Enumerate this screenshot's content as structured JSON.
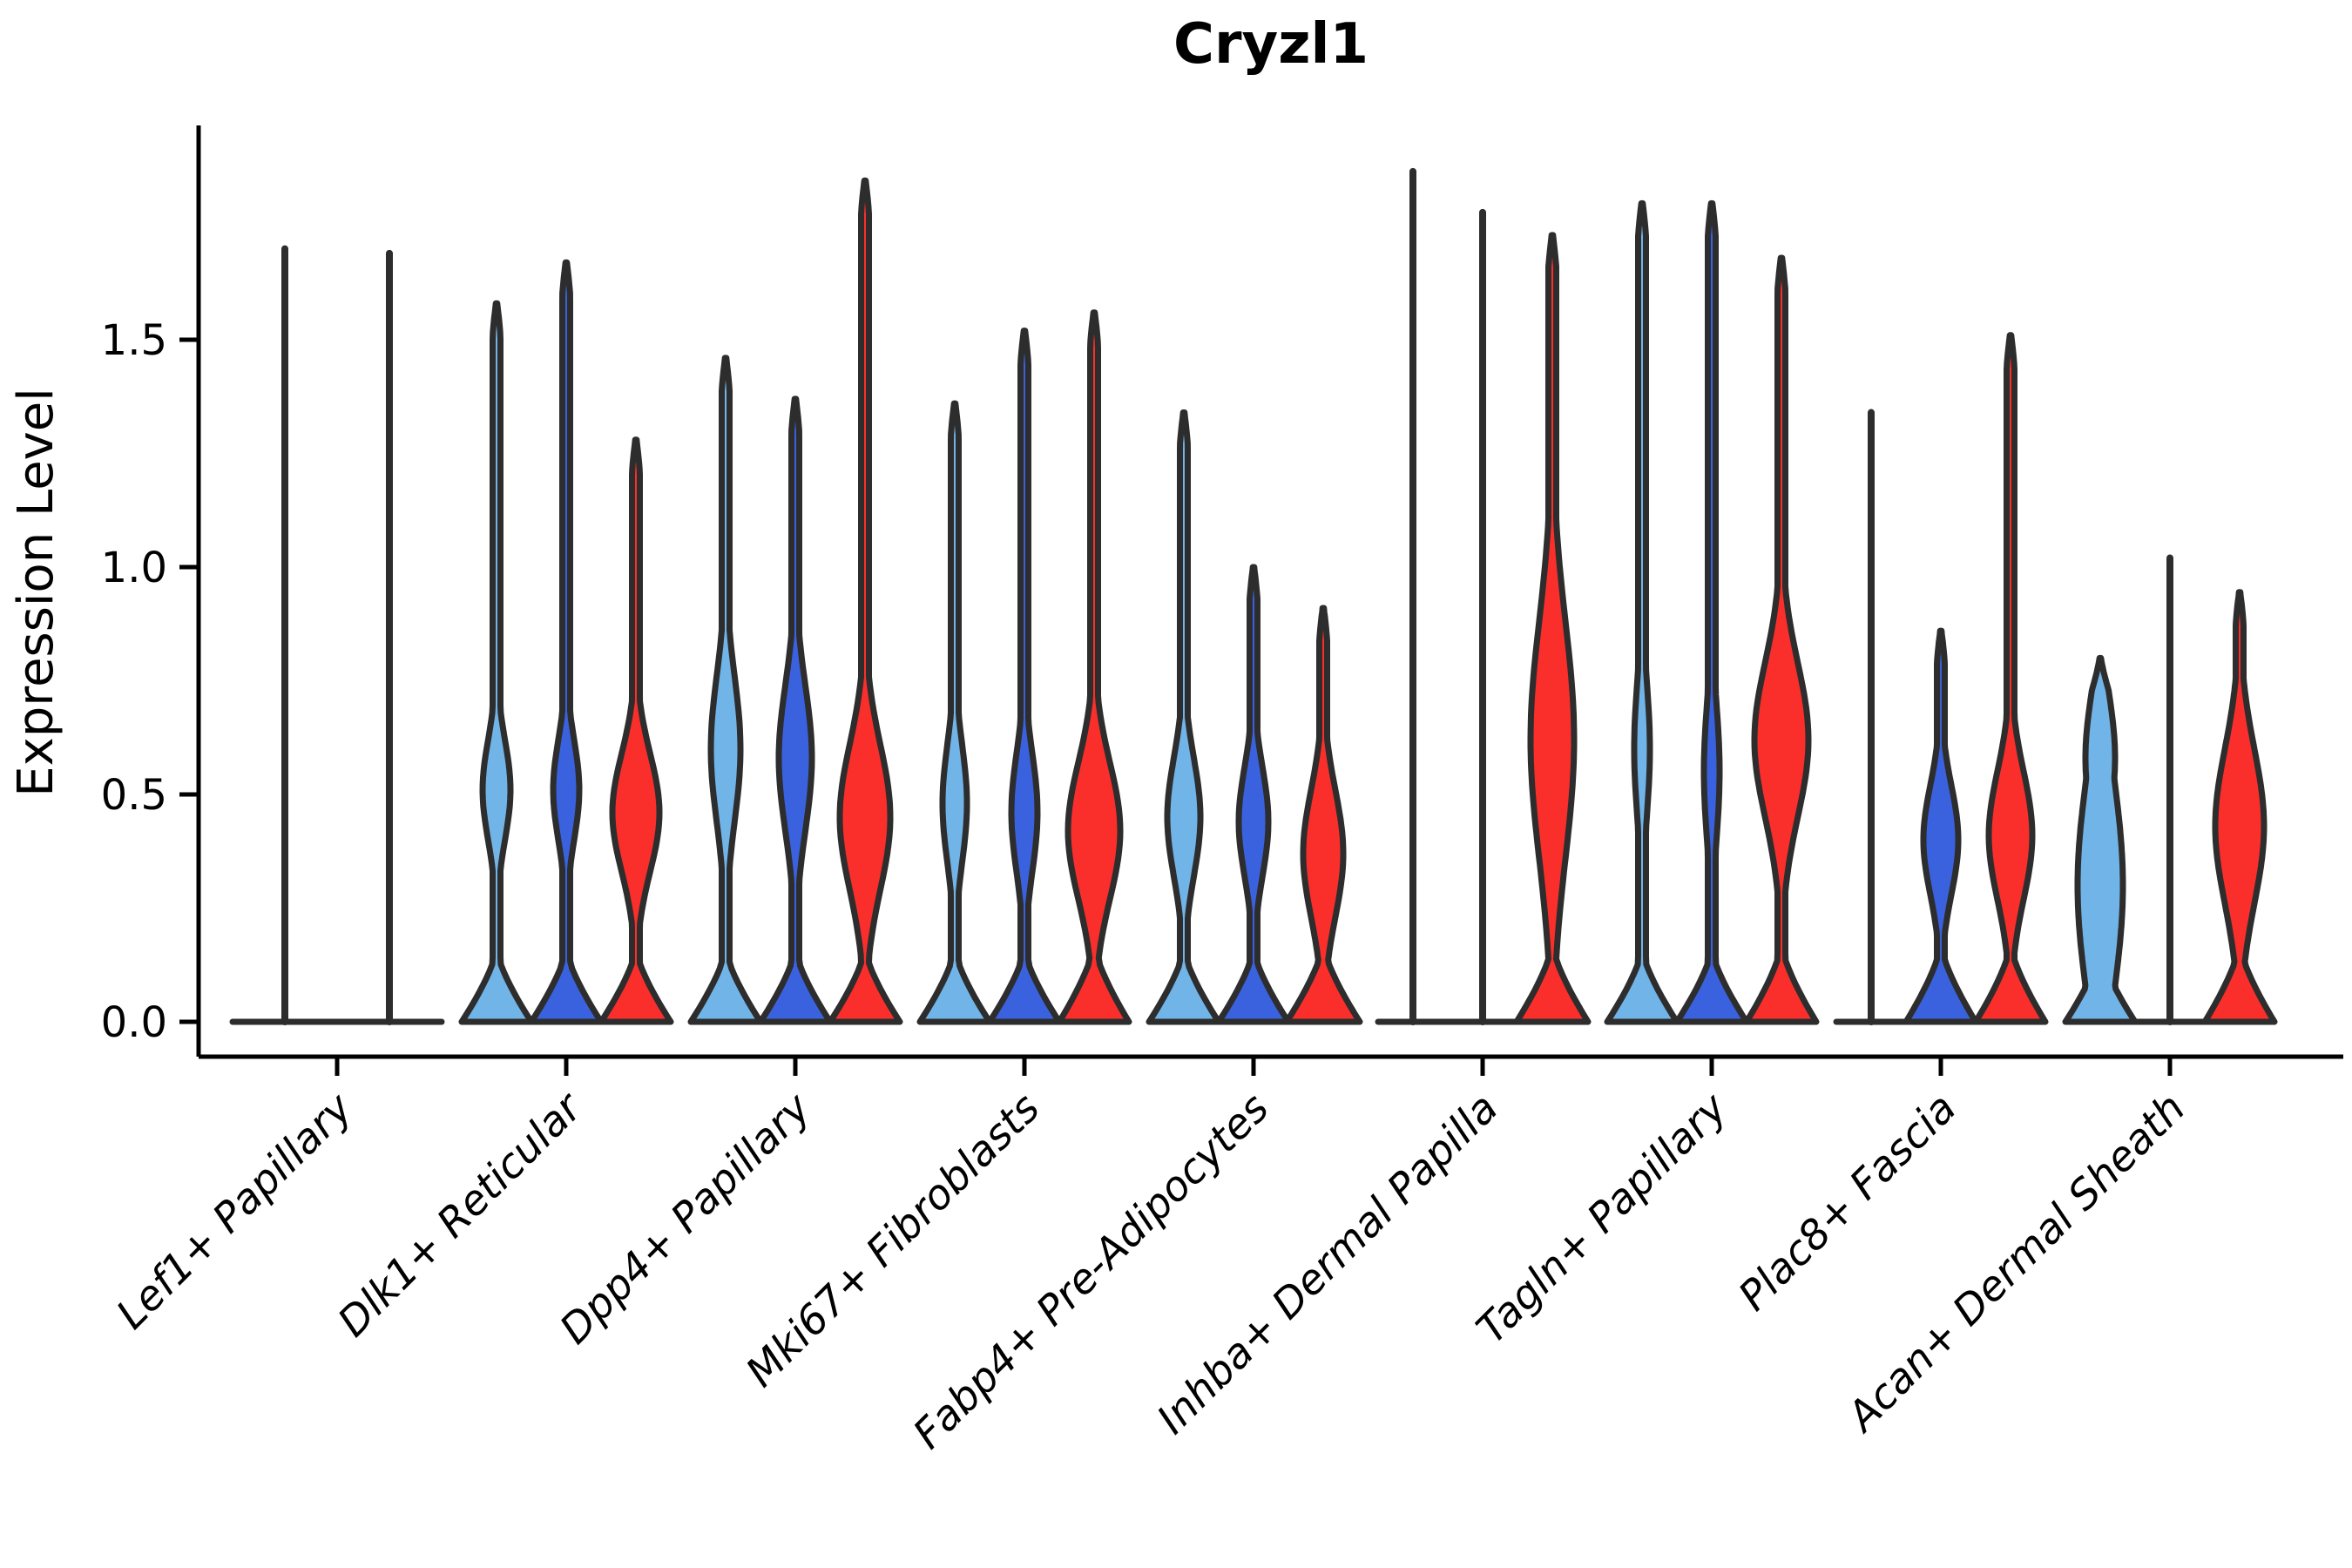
{
  "figure": {
    "title": "Cryzl1",
    "ylabel": "Expression Level"
  },
  "chart_data": {
    "type": "violin",
    "title": "Cryzl1",
    "xlabel": "",
    "ylabel": "Expression Level",
    "yticks": [
      "0.0",
      "0.5",
      "1.0",
      "1.5"
    ],
    "ytick_values": [
      0.0,
      0.5,
      1.0,
      1.5
    ],
    "ylim": [
      0,
      1.97
    ],
    "grid": false,
    "legend": "none",
    "series_colors": {
      "light_blue": "#71B4E8",
      "dark_blue": "#3B62DE",
      "red": "#FA2F2C"
    },
    "outline_color": "#2D2D2D",
    "axis_color": "#000000",
    "categories": [
      {
        "label": "Lef1+ Papillary",
        "violins": [
          {
            "color": null,
            "kind": "spike",
            "max": 1.7,
            "base": {
              "hw": 60
            }
          },
          {
            "color": null,
            "kind": "spike",
            "max": 1.69,
            "base": {
              "hw": 60
            }
          }
        ]
      },
      {
        "label": "Dlk1+ Reticular",
        "violins": [
          {
            "color": "light_blue",
            "kind": "violin",
            "max": 1.58,
            "bulges": [
              {
                "c": 0.51,
                "hw": 16,
                "sigma": 0.11
              }
            ],
            "base": {
              "hw": 40,
              "h": 0.16
            }
          },
          {
            "color": "dark_blue",
            "kind": "violin",
            "max": 1.67,
            "bulges": [
              {
                "c": 0.51,
                "hw": 15,
                "sigma": 0.11
              }
            ],
            "base": {
              "hw": 40,
              "h": 0.16
            }
          },
          {
            "color": "red",
            "kind": "violin",
            "max": 1.28,
            "bulges": [
              {
                "c": 0.46,
                "hw": 27,
                "sigma": 0.13
              }
            ],
            "base": {
              "hw": 40,
              "h": 0.16
            }
          }
        ]
      },
      {
        "label": "Dpp4+ Papillary",
        "violins": [
          {
            "color": "light_blue",
            "kind": "violin",
            "max": 1.46,
            "bulges": [
              {
                "c": 0.6,
                "hw": 17,
                "sigma": 0.16
              }
            ],
            "base": {
              "hw": 40,
              "h": 0.16
            }
          },
          {
            "color": "dark_blue",
            "kind": "violin",
            "max": 1.37,
            "bulges": [
              {
                "c": 0.58,
                "hw": 19,
                "sigma": 0.16
              }
            ],
            "base": {
              "hw": 40,
              "h": 0.16
            }
          },
          {
            "color": "red",
            "kind": "violin",
            "max": 1.85,
            "bulges": [
              {
                "c": 0.45,
                "hw": 29,
                "sigma": 0.16
              }
            ],
            "base": {
              "hw": 40,
              "h": 0.16
            }
          }
        ]
      },
      {
        "label": "Mki67+ Fibroblasts",
        "violins": [
          {
            "color": "light_blue",
            "kind": "violin",
            "max": 1.36,
            "bulges": [
              {
                "c": 0.48,
                "hw": 14,
                "sigma": 0.13
              }
            ],
            "base": {
              "hw": 40,
              "h": 0.16
            }
          },
          {
            "color": "dark_blue",
            "kind": "violin",
            "max": 1.52,
            "bulges": [
              {
                "c": 0.46,
                "hw": 15,
                "sigma": 0.13
              }
            ],
            "base": {
              "hw": 40,
              "h": 0.16
            }
          },
          {
            "color": "red",
            "kind": "violin",
            "max": 1.56,
            "bulges": [
              {
                "c": 0.42,
                "hw": 30,
                "sigma": 0.15
              }
            ],
            "base": {
              "hw": 40,
              "h": 0.17
            }
          }
        ]
      },
      {
        "label": "Fabp4+ Pre-Adipocytes",
        "violins": [
          {
            "color": "light_blue",
            "kind": "violin",
            "max": 1.34,
            "bulges": [
              {
                "c": 0.45,
                "hw": 19,
                "sigma": 0.13
              }
            ],
            "base": {
              "hw": 40,
              "h": 0.16
            }
          },
          {
            "color": "dark_blue",
            "kind": "violin",
            "max": 1.0,
            "bulges": [
              {
                "c": 0.44,
                "hw": 17,
                "sigma": 0.12
              }
            ],
            "base": {
              "hw": 40,
              "h": 0.16
            }
          },
          {
            "color": "red",
            "kind": "violin",
            "max": 0.91,
            "bulges": [
              {
                "c": 0.37,
                "hw": 23,
                "sigma": 0.14
              }
            ],
            "base": {
              "hw": 42,
              "h": 0.17
            }
          }
        ]
      },
      {
        "label": "Inhba+ Dermal Papilla",
        "violins": [
          {
            "color": "light_blue",
            "kind": "spike",
            "max": 1.87,
            "base": {
              "hw": 40
            }
          },
          {
            "color": "dark_blue",
            "kind": "spike",
            "max": 1.78,
            "base": {
              "hw": 40
            }
          },
          {
            "color": "red",
            "kind": "violin",
            "max": 1.73,
            "bulges": [
              {
                "c": 0.62,
                "hw": 25,
                "sigma": 0.26
              }
            ],
            "base": {
              "hw": 41,
              "h": 0.17
            }
          }
        ]
      },
      {
        "label": "Tagln+ Papillary",
        "violins": [
          {
            "color": "light_blue",
            "kind": "violin",
            "max": 1.8,
            "bulges": [
              {
                "c": 0.6,
                "hw": 9,
                "sigma": 0.15
              }
            ],
            "base": {
              "hw": 40,
              "h": 0.16
            }
          },
          {
            "color": "dark_blue",
            "kind": "violin",
            "max": 1.8,
            "bulges": [
              {
                "c": 0.55,
                "hw": 9,
                "sigma": 0.15
              }
            ],
            "base": {
              "hw": 40,
              "h": 0.16
            }
          },
          {
            "color": "red",
            "kind": "violin",
            "max": 1.68,
            "bulges": [
              {
                "c": 0.62,
                "hw": 31,
                "sigma": 0.17
              }
            ],
            "base": {
              "hw": 40,
              "h": 0.17
            }
          }
        ]
      },
      {
        "label": "Plac8+ Fascia",
        "violins": [
          {
            "color": "light_blue",
            "kind": "spike",
            "max": 1.34,
            "base": {
              "hw": 40
            }
          },
          {
            "color": "dark_blue",
            "kind": "violin",
            "max": 0.86,
            "bulges": [
              {
                "c": 0.4,
                "hw": 20,
                "sigma": 0.12
              }
            ],
            "base": {
              "hw": 40,
              "h": 0.17
            }
          },
          {
            "color": "red",
            "kind": "violin",
            "max": 1.51,
            "bulges": [
              {
                "c": 0.41,
                "hw": 25,
                "sigma": 0.14
              }
            ],
            "base": {
              "hw": 40,
              "h": 0.17
            }
          }
        ]
      },
      {
        "label": "Acan+ Dermal Sheath",
        "violins": [
          {
            "color": "light_blue",
            "kind": "violin",
            "max": 0.8,
            "neck": 6,
            "bulges": [
              {
                "c": 0.3,
                "hw": 26,
                "sigma": 0.24
              },
              {
                "c": 0.58,
                "hw": 17,
                "sigma": 0.14
              }
            ],
            "base": {
              "hw": 40,
              "h": 0.16
            }
          },
          {
            "color": "dark_blue",
            "kind": "spike",
            "max": 1.02,
            "base": {
              "hw": 40
            }
          },
          {
            "color": "red",
            "kind": "violin",
            "max": 0.945,
            "bulges": [
              {
                "c": 0.43,
                "hw": 28,
                "sigma": 0.17
              }
            ],
            "base": {
              "hw": 40,
              "h": 0.17
            }
          }
        ]
      }
    ]
  }
}
